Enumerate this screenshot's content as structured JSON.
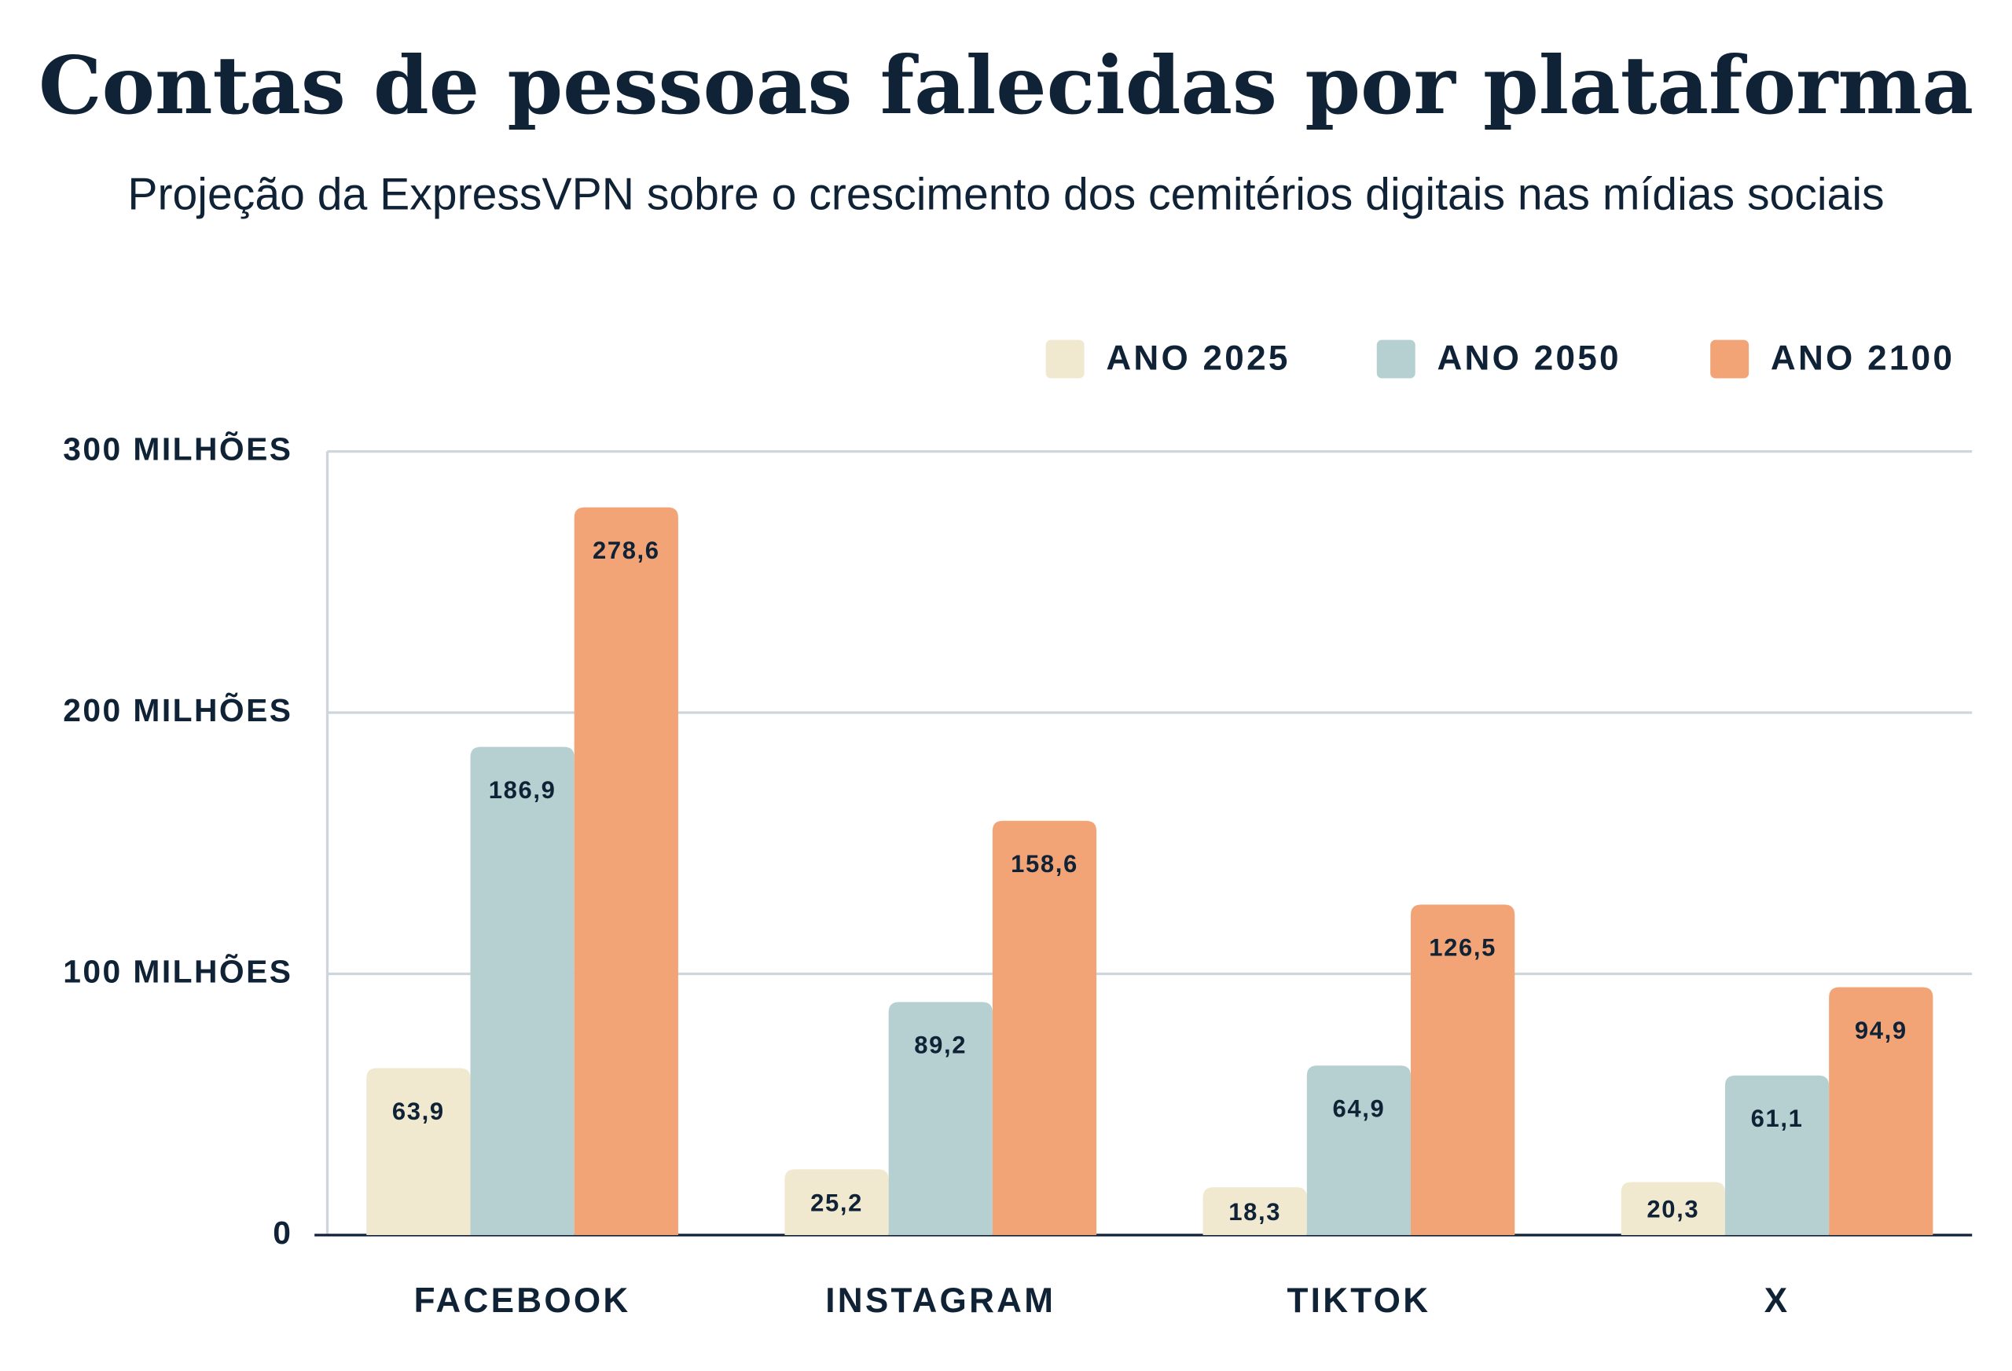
{
  "chart_data": {
    "type": "bar",
    "title": "Contas de pessoas falecidas por plataforma",
    "subtitle": "Projeção da ExpressVPN sobre o crescimento dos cemitérios digitais nas mídias sociais",
    "categories": [
      "FACEBOOK",
      "INSTAGRAM",
      "TIKTOK",
      "X"
    ],
    "series": [
      {
        "name": "ANO 2025",
        "color": "#f0e9cf",
        "values": [
          63.9,
          25.2,
          18.3,
          20.3
        ],
        "value_labels": [
          "63,9",
          "25,2",
          "18,3",
          "20,3"
        ]
      },
      {
        "name": "ANO 2050",
        "color": "#b6d0d1",
        "values": [
          186.9,
          89.2,
          64.9,
          61.1
        ],
        "value_labels": [
          "186,9",
          "89,2",
          "64,9",
          "61,1"
        ]
      },
      {
        "name": "ANO 2100",
        "color": "#f2a476",
        "values": [
          278.6,
          158.6,
          126.5,
          94.9
        ],
        "value_labels": [
          "278,6",
          "158,6",
          "126,5",
          "94,9"
        ]
      }
    ],
    "ylim": [
      0,
      300
    ],
    "yticks": [
      0,
      {
        "value": 100,
        "label": "100 MILHÕES"
      },
      {
        "value": 200,
        "label": "200 MILHÕES"
      },
      {
        "value": 300,
        "label": "300 MILHÕES"
      }
    ],
    "grid": true,
    "legend": "top-right"
  }
}
